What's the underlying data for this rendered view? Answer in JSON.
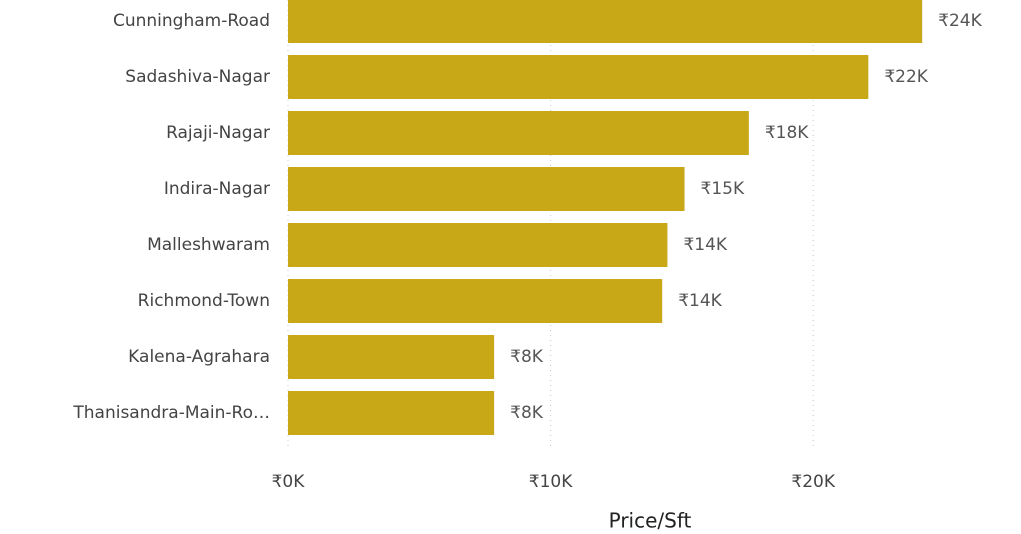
{
  "chart_data": {
    "type": "bar",
    "orientation": "horizontal",
    "x_label": "Price/Sft",
    "categories": [
      "Cunningham-Road",
      "Sadashiva-Nagar",
      "Rajaji-Nagar",
      "Indira-Nagar",
      "Malleshwaram",
      "Richmond-Town",
      "Kalena-Agrahara",
      "Thanisandra-Main-Ro…"
    ],
    "values": [
      24150,
      22100,
      17550,
      15100,
      14450,
      14250,
      7850,
      7850
    ],
    "value_labels": [
      "₹24K",
      "₹22K",
      "₹18K",
      "₹15K",
      "₹14K",
      "₹14K",
      "₹8K",
      "₹8K"
    ],
    "color": "#c8a816",
    "xlim": [
      0,
      27000
    ],
    "xticks": [
      {
        "value": 0,
        "label": "₹0K"
      },
      {
        "value": 10000,
        "label": "₹10K"
      },
      {
        "value": 20000,
        "label": "₹20K"
      }
    ],
    "grid": true
  }
}
